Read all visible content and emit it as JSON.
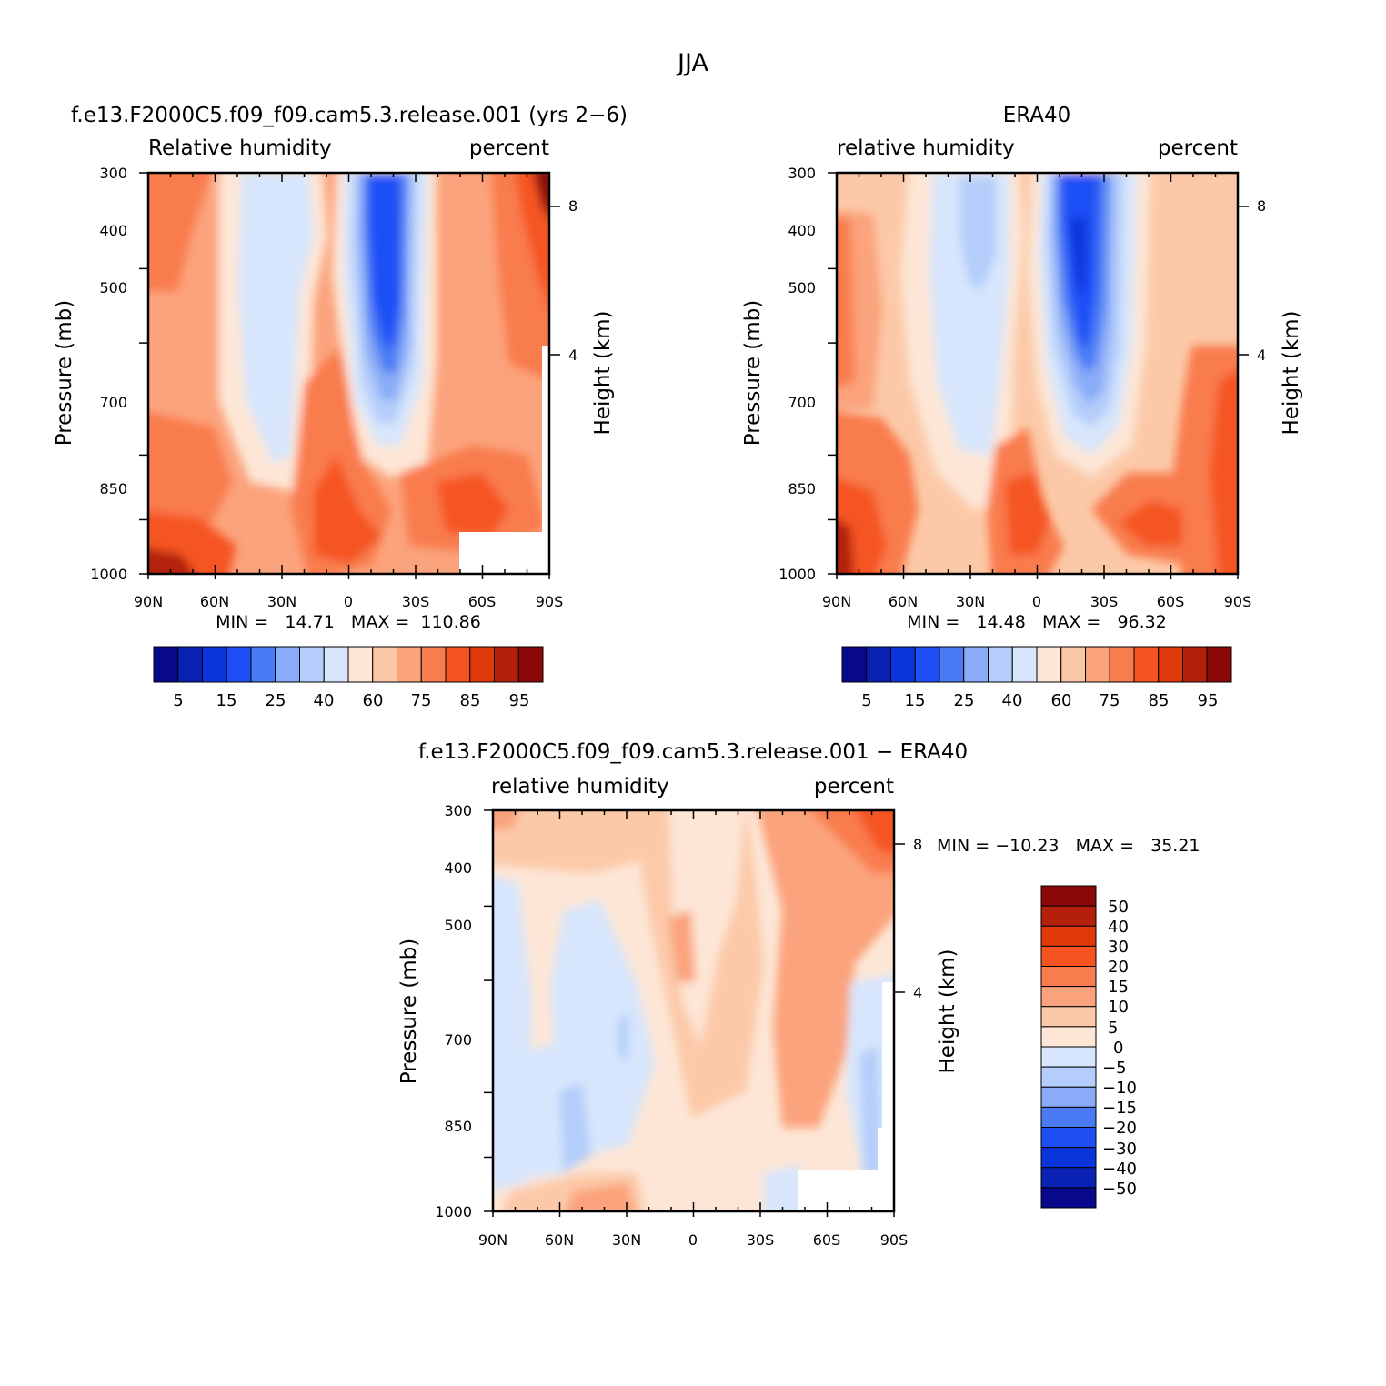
{
  "figure_title": "JJA",
  "colors": {
    "abs_palette": [
      "#08088c",
      "#0a22b4",
      "#0a35dc",
      "#1e4ff5",
      "#4a7bf5",
      "#8aabf7",
      "#b4cdfa",
      "#d7e6fc",
      "#fde6d6",
      "#fcc9a8",
      "#fba37c",
      "#f97c4e",
      "#f55421",
      "#e13a0a",
      "#b4200a",
      "#8c0707"
    ],
    "diff_palette": [
      "#08088c",
      "#0a22b4",
      "#0a35dc",
      "#1e4ff5",
      "#4a7bf5",
      "#8aabf7",
      "#b4cdfa",
      "#d7e6fc",
      "#fde6d6",
      "#fcc9a8",
      "#fba37c",
      "#f97c4e",
      "#f55421",
      "#e13a0a",
      "#b4200a",
      "#8c0707"
    ]
  },
  "panels": [
    {
      "title": "f.e13.F2000C5.f09_f09.cam5.3.release.001 (yrs 2−6)",
      "left_label": "Relative humidity",
      "right_label": "percent",
      "ylabel": "Pressure (mb)",
      "ylabel2": "Height (km)",
      "min_max": "MIN =   14.71   MAX =  110.86",
      "colorbar_labels": [
        "5",
        "15",
        "25",
        "40",
        "60",
        "75",
        "85",
        "95"
      ]
    },
    {
      "title": "ERA40",
      "left_label": "relative humidity",
      "right_label": "percent",
      "ylabel": "Pressure (mb)",
      "ylabel2": "Height (km)",
      "min_max": "MIN =   14.48   MAX =   96.32",
      "colorbar_labels": [
        "5",
        "15",
        "25",
        "40",
        "60",
        "75",
        "85",
        "95"
      ]
    },
    {
      "title": "f.e13.F2000C5.f09_f09.cam5.3.release.001 − ERA40",
      "left_label": "relative humidity",
      "right_label": "percent",
      "ylabel": "Pressure (mb)",
      "ylabel2": "Height (km)",
      "min_max": "MIN = −10.23   MAX =   35.21",
      "colorbar_labels": [
        "50",
        "40",
        "30",
        "20",
        "15",
        "10",
        "5",
        "0",
        "−5",
        "−10",
        "−15",
        "−20",
        "−30",
        "−40",
        "−50"
      ]
    }
  ],
  "axes": {
    "x_ticks": [
      "90N",
      "60N",
      "30N",
      "0",
      "30S",
      "60S",
      "90S"
    ],
    "y_ticks": [
      "300",
      "400",
      "500",
      "700",
      "850",
      "1000"
    ],
    "y2_ticks": [
      "8",
      "4"
    ]
  },
  "chart_data": [
    {
      "type": "heatmap",
      "title": "f.e13.F2000C5.f09_f09.cam5.3.release.001 (yrs 2−6)",
      "xlabel": "",
      "ylabel": "Pressure (mb)",
      "x": [
        90,
        60,
        30,
        0,
        -30,
        -60,
        -90
      ],
      "y_levels": [
        300,
        400,
        500,
        700,
        850,
        1000
      ],
      "y_scale": "log",
      "contour_levels": [
        5,
        10,
        15,
        20,
        25,
        30,
        40,
        50,
        60,
        70,
        75,
        80,
        85,
        90,
        95
      ],
      "approx_profile": {
        "lat": [
          90,
          75,
          60,
          45,
          35,
          25,
          15,
          5,
          0,
          -5,
          -15,
          -25,
          -35,
          -45,
          -55,
          -65,
          -80,
          -90
        ],
        "p300_500": [
          78,
          77,
          70,
          62,
          46,
          40,
          45,
          60,
          66,
          45,
          20,
          32,
          55,
          63,
          68,
          72,
          82,
          95
        ],
        "p700": [
          74,
          70,
          64,
          55,
          45,
          40,
          46,
          68,
          75,
          62,
          35,
          48,
          64,
          70,
          73,
          76,
          82,
          86
        ],
        "p1000": [
          88,
          84,
          80,
          78,
          72,
          70,
          74,
          82,
          86,
          78,
          72,
          76,
          82,
          86,
          88,
          86,
          84,
          84
        ]
      },
      "min": 14.71,
      "max": 110.86
    },
    {
      "type": "heatmap",
      "title": "ERA40",
      "xlabel": "",
      "ylabel": "Pressure (mb)",
      "x": [
        90,
        60,
        30,
        0,
        -30,
        -60,
        -90
      ],
      "y_levels": [
        300,
        400,
        500,
        700,
        850,
        1000
      ],
      "y_scale": "log",
      "contour_levels": [
        5,
        10,
        15,
        20,
        25,
        30,
        40,
        50,
        60,
        70,
        75,
        80,
        85,
        90,
        95
      ],
      "approx_profile": {
        "lat": [
          90,
          75,
          60,
          45,
          35,
          25,
          15,
          5,
          0,
          -5,
          -15,
          -25,
          -35,
          -45,
          -55,
          -65,
          -80,
          -90
        ],
        "p300_500": [
          80,
          66,
          66,
          64,
          58,
          48,
          40,
          52,
          62,
          40,
          20,
          36,
          55,
          60,
          64,
          66,
          70,
          76
        ],
        "p700": [
          84,
          78,
          72,
          64,
          56,
          50,
          48,
          62,
          72,
          58,
          32,
          48,
          62,
          66,
          70,
          74,
          82,
          88
        ],
        "p1000": [
          92,
          88,
          78,
          72,
          70,
          70,
          72,
          80,
          86,
          78,
          72,
          74,
          80,
          84,
          86,
          84,
          86,
          88
        ]
      },
      "min": 14.48,
      "max": 96.32
    },
    {
      "type": "heatmap",
      "title": "f.e13.F2000C5.f09_f09.cam5.3.release.001 − ERA40",
      "xlabel": "",
      "ylabel": "Pressure (mb)",
      "x": [
        90,
        60,
        30,
        0,
        -30,
        -60,
        -90
      ],
      "y_levels": [
        300,
        400,
        500,
        700,
        850,
        1000
      ],
      "y_scale": "log",
      "contour_levels": [
        -50,
        -40,
        -30,
        -20,
        -15,
        -10,
        -5,
        0,
        5,
        10,
        15,
        20,
        30,
        40,
        50
      ],
      "approx_profile": {
        "lat": [
          90,
          75,
          60,
          45,
          35,
          25,
          15,
          5,
          0,
          -5,
          -15,
          -25,
          -35,
          -45,
          -55,
          -65,
          -80,
          -90
        ],
        "p300_500": [
          -3,
          2,
          4,
          -2,
          -4,
          -2,
          3,
          6,
          4,
          3,
          2,
          4,
          8,
          11,
          12,
          10,
          16,
          22
        ],
        "p700": [
          -4,
          -3,
          -3,
          -4,
          -6,
          -4,
          2,
          5,
          3,
          4,
          3,
          4,
          6,
          10,
          11,
          8,
          2,
          -4
        ],
        "p1000": [
          -3,
          -2,
          3,
          6,
          2,
          0,
          3,
          6,
          2,
          4,
          3,
          2,
          2,
          1,
          -3,
          -2,
          -2,
          -2
        ]
      },
      "min": -10.23,
      "max": 35.21
    }
  ]
}
